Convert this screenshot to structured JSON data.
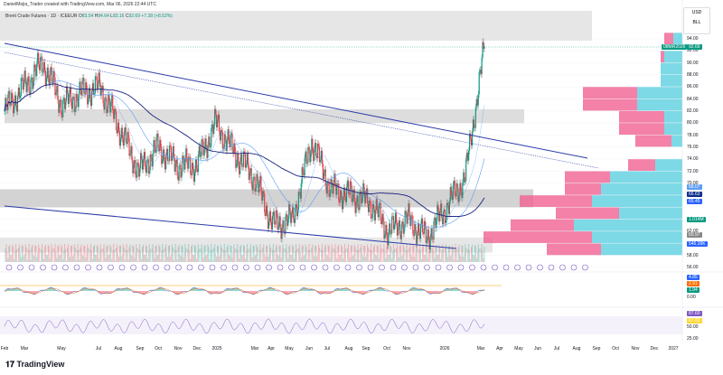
{
  "header": {
    "credit": "DanielMejia_Trader created with TradingView.com, Mar 06, 2026 22:44 UTC",
    "symbol": "Brent Crude Futures · 1D · ICEEUR",
    "o": "83.54",
    "h": "94.64",
    "l": "83.16",
    "c": "92.69",
    "change": "+7.28 (+8.52%)"
  },
  "currency": "USD",
  "unit": "BLL",
  "price_axis": [
    "94.00",
    "92.00",
    "90.00",
    "88.00",
    "86.00",
    "84.00",
    "82.00",
    "80.00",
    "78.00",
    "76.00",
    "74.00",
    "72.00",
    "70.00",
    "62.00",
    "58.00",
    "56.00"
  ],
  "badges": [
    {
      "text": "08MR2026",
      "color": "#089981"
    },
    {
      "text": "92.69",
      "color": "#089981"
    },
    {
      "text": "68.07",
      "color": "#5b9cf6"
    },
    {
      "text": "66.63",
      "color": "#0d2d8c"
    },
    {
      "text": "65.45",
      "color": "#2962ff"
    },
    {
      "text": "1.014M",
      "color": "#089981"
    },
    {
      "text": "60.97",
      "color": "#888888"
    },
    {
      "text": "546.39K",
      "color": "#2962ff"
    },
    {
      "text": "4.85",
      "color": "#2962ff"
    },
    {
      "text": "2.91",
      "color": "#ff6d00"
    },
    {
      "text": "1.94",
      "color": "#089981"
    },
    {
      "text": "87.60",
      "color": "#7e57c2"
    },
    {
      "text": "67.82",
      "color": "#fdd835"
    }
  ],
  "indicator_axis": [
    "0.00",
    "50.00",
    "25.00"
  ],
  "time_axis": [
    "Feb",
    "Mar",
    "May",
    "Jul",
    "Aug",
    "Sep",
    "Oct",
    "Nov",
    "Dec",
    "2025",
    "Mar",
    "Apr",
    "May",
    "Jun",
    "Jul",
    "Aug",
    "Sep",
    "Oct",
    "Nov",
    "2026",
    "Mar",
    "Apr",
    "May",
    "Jun",
    "Jul",
    "Aug",
    "Sep",
    "Oct",
    "Nov",
    "Dec",
    "2027"
  ],
  "logo": "TradingView",
  "colors": {
    "up": "#089981",
    "down": "#f23645",
    "trend": "#2a3aa8",
    "profile_up": "#5dd0e0",
    "profile_down": "#f06292"
  },
  "chart_data": {
    "type": "candlestick",
    "x": [
      "2024-02",
      "2024-03",
      "2024-04",
      "2024-05",
      "2024-06",
      "2024-07",
      "2024-08",
      "2024-09",
      "2024-10",
      "2024-11",
      "2024-12",
      "2025-01",
      "2025-02",
      "2025-03",
      "2025-04",
      "2025-05",
      "2025-06",
      "2025-07",
      "2025-08",
      "2025-09",
      "2025-10",
      "2025-11",
      "2025-12",
      "2026-01",
      "2026-02",
      "2026-03"
    ],
    "close": [
      82,
      86,
      90,
      83,
      85,
      86,
      79,
      72,
      76,
      73,
      73,
      80,
      75,
      71,
      63,
      64,
      77,
      69,
      68,
      67,
      62,
      64,
      61,
      66,
      71,
      92.69
    ],
    "ylim": [
      54,
      96
    ],
    "volume_profile": [
      {
        "price": 94,
        "up": 0.05,
        "down": 0.05
      },
      {
        "price": 91,
        "up": 0.1,
        "down": 0.02
      },
      {
        "price": 89,
        "up": 0.12,
        "down": 0
      },
      {
        "price": 87,
        "up": 0.12,
        "down": 0
      },
      {
        "price": 85,
        "up": 0.25,
        "down": 0.3
      },
      {
        "price": 83,
        "up": 0.25,
        "down": 0.3
      },
      {
        "price": 81,
        "up": 0.1,
        "down": 0.25
      },
      {
        "price": 79,
        "up": 0.1,
        "down": 0.25
      },
      {
        "price": 77,
        "up": 0.06,
        "down": 0.2
      },
      {
        "price": 73,
        "up": 0.15,
        "down": 0.15
      },
      {
        "price": 71,
        "up": 0.4,
        "down": 0.25
      },
      {
        "price": 69,
        "up": 0.45,
        "down": 0.2
      },
      {
        "price": 67,
        "up": 0.5,
        "down": 0.4
      },
      {
        "price": 65,
        "up": 0.35,
        "down": 0.35
      },
      {
        "price": 63,
        "up": 0.6,
        "down": 0.35
      },
      {
        "price": 61,
        "up": 0.5,
        "down": 0.6
      },
      {
        "price": 59,
        "up": 0.45,
        "down": 0.3
      }
    ]
  }
}
